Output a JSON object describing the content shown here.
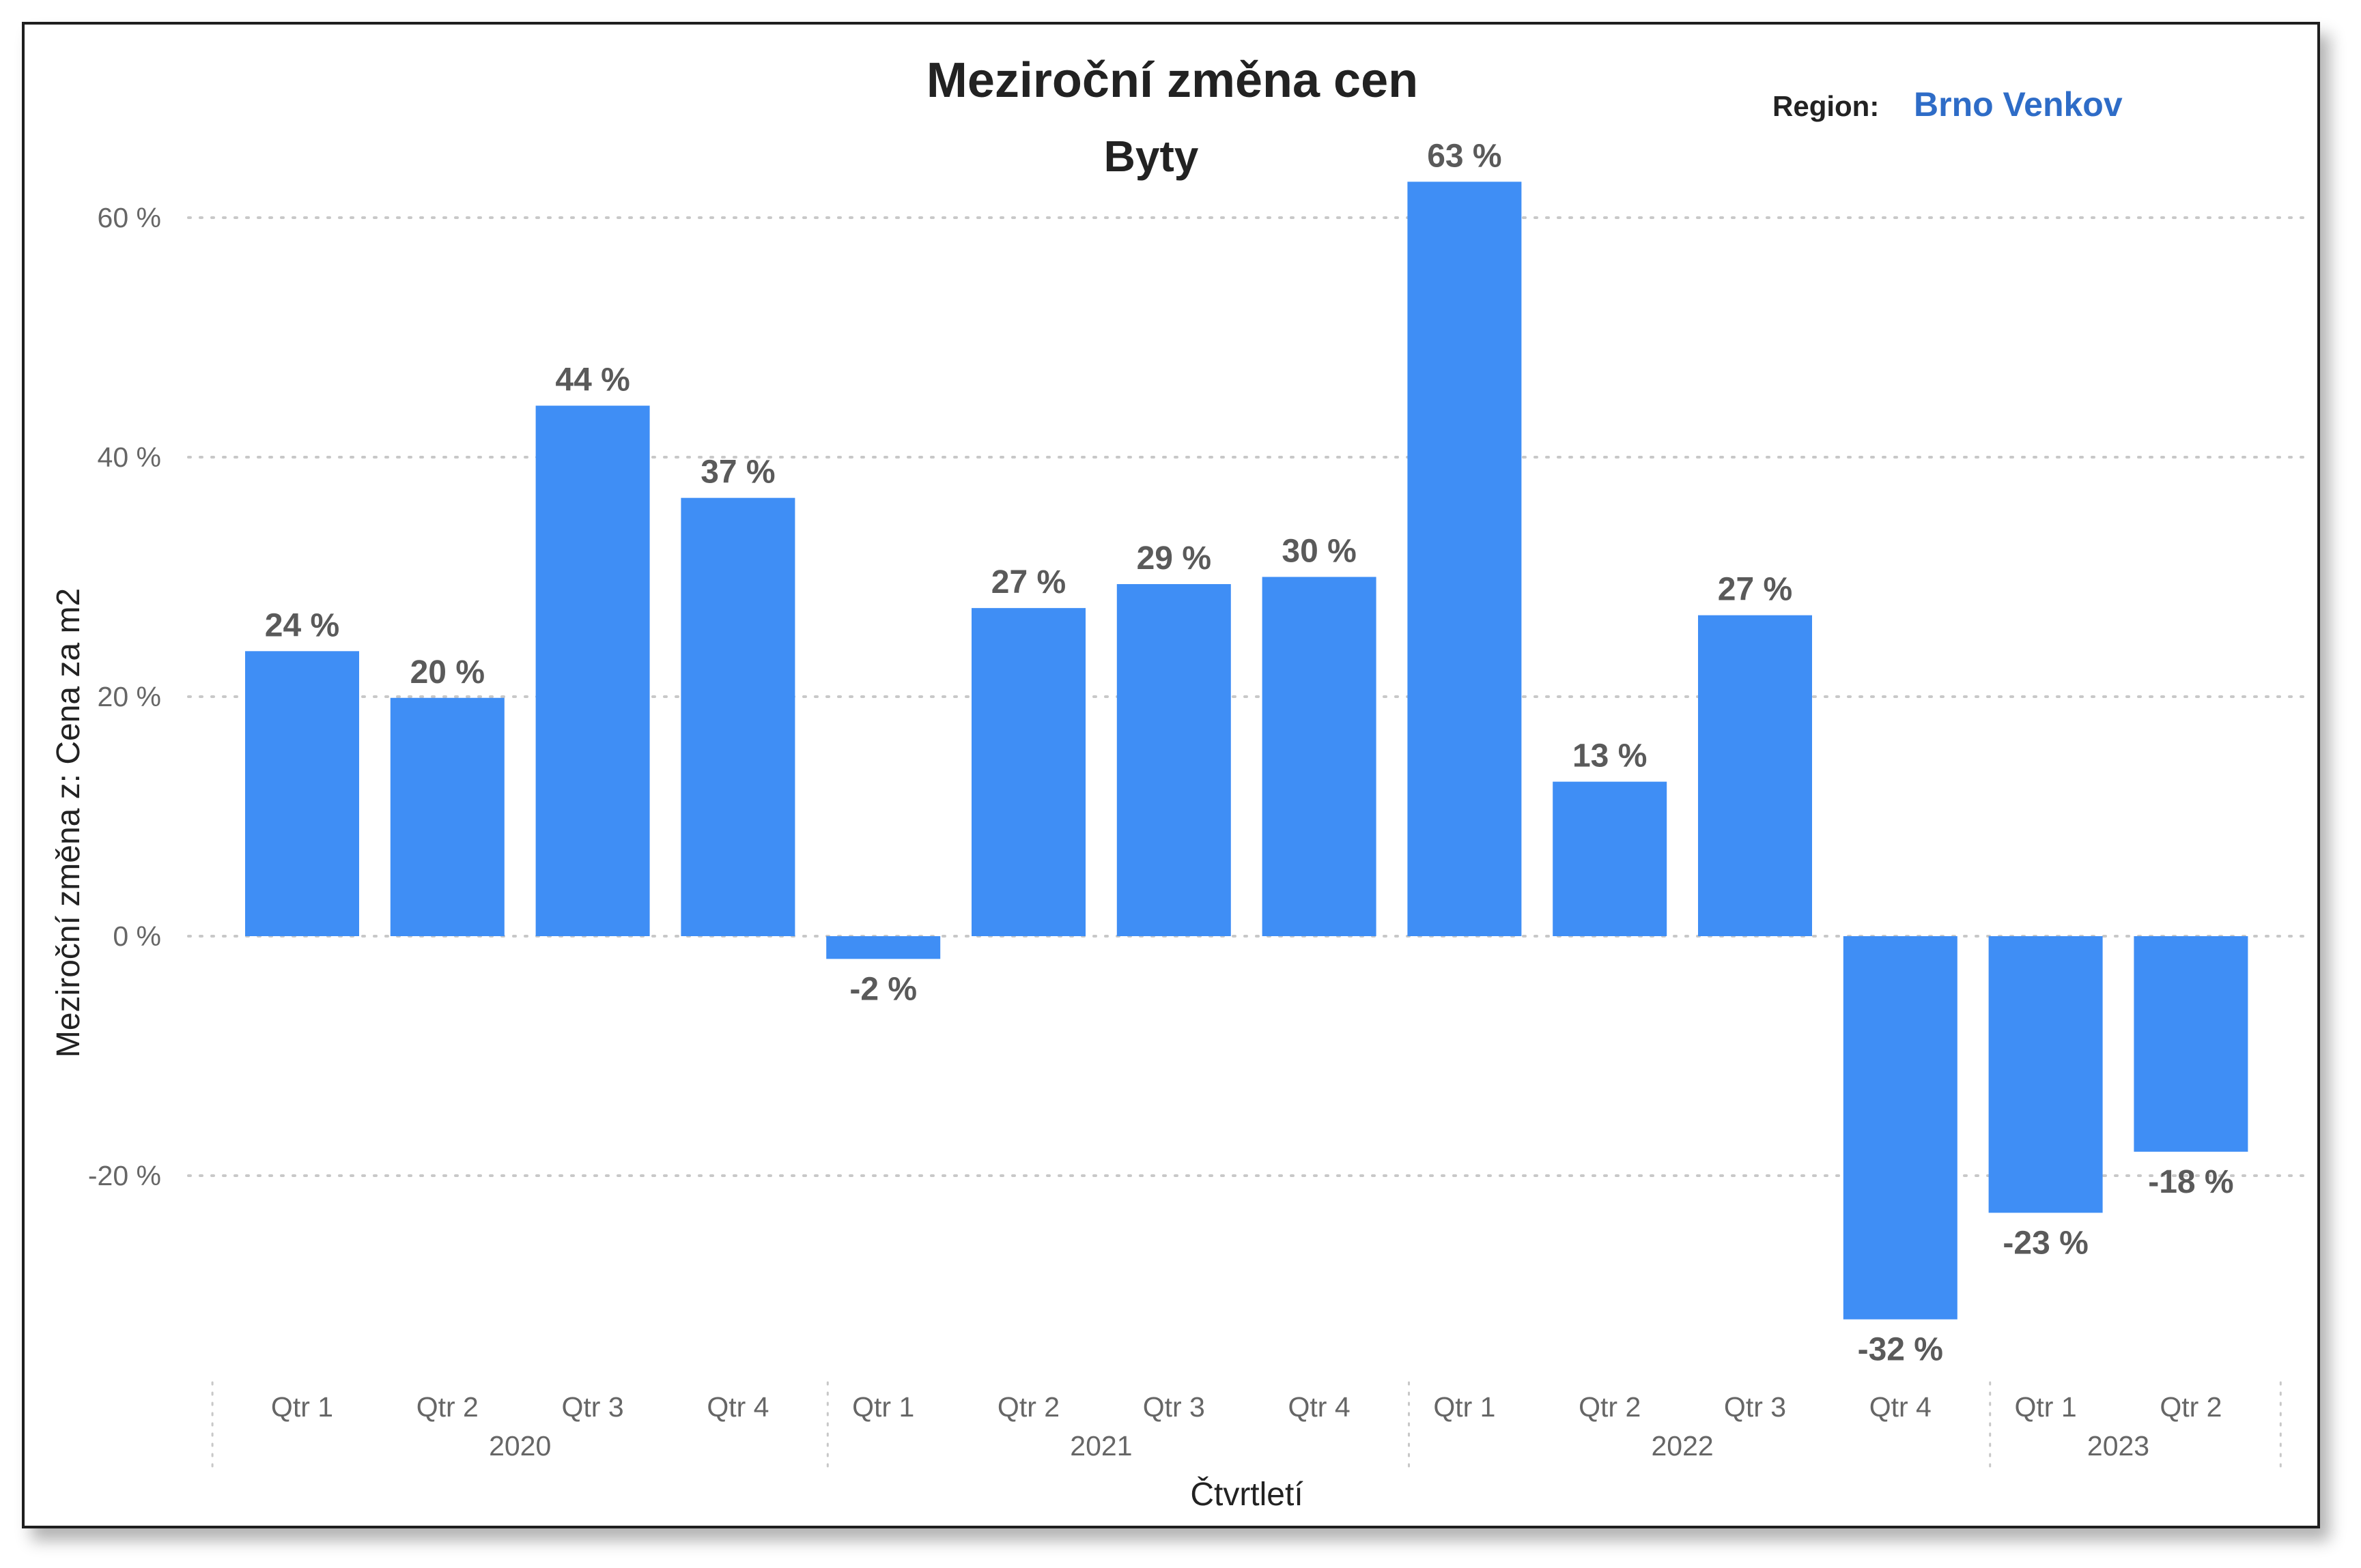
{
  "header": {
    "title": "Meziroční změna cen",
    "subtitle": "Byty",
    "region_label": "Region:",
    "region_value": "Brno Venkov"
  },
  "colors": {
    "bar": "#3f8ef5",
    "region_value": "#2e6cc7",
    "grid": "#c8c8c8"
  },
  "chart_data": {
    "type": "bar",
    "title": "Meziroční změna cen",
    "subtitle": "Byty",
    "xlabel": "Čtvrtletí",
    "ylabel": "Meziroční změna z: Cena za m2",
    "ylim": [
      -32,
      66
    ],
    "yticks": [
      60,
      40,
      20,
      0,
      -20
    ],
    "ytick_labels": [
      "60 %",
      "40 %",
      "20 %",
      "0 %",
      "-20 %"
    ],
    "grid": true,
    "categories": [
      "Qtr 1",
      "Qtr 2",
      "Qtr 3",
      "Qtr 4",
      "Qtr 1",
      "Qtr 2",
      "Qtr 3",
      "Qtr 4",
      "Qtr 1",
      "Qtr 2",
      "Qtr 3",
      "Qtr 4",
      "Qtr 1",
      "Qtr 2"
    ],
    "years": [
      {
        "label": "2020",
        "count": 4
      },
      {
        "label": "2021",
        "count": 4
      },
      {
        "label": "2022",
        "count": 4
      },
      {
        "label": "2023",
        "count": 2
      }
    ],
    "values": [
      23.8,
      19.9,
      44.3,
      36.6,
      -1.9,
      27.4,
      29.4,
      30.0,
      63.0,
      12.9,
      26.8,
      -32.0,
      -23.1,
      -18.0
    ],
    "data_labels": [
      "24 %",
      "20 %",
      "44 %",
      "37 %",
      "-2 %",
      "27 %",
      "29 %",
      "30 %",
      "63 %",
      "13 %",
      "27 %",
      "-32 %",
      "-23 %",
      "-18 %"
    ]
  }
}
